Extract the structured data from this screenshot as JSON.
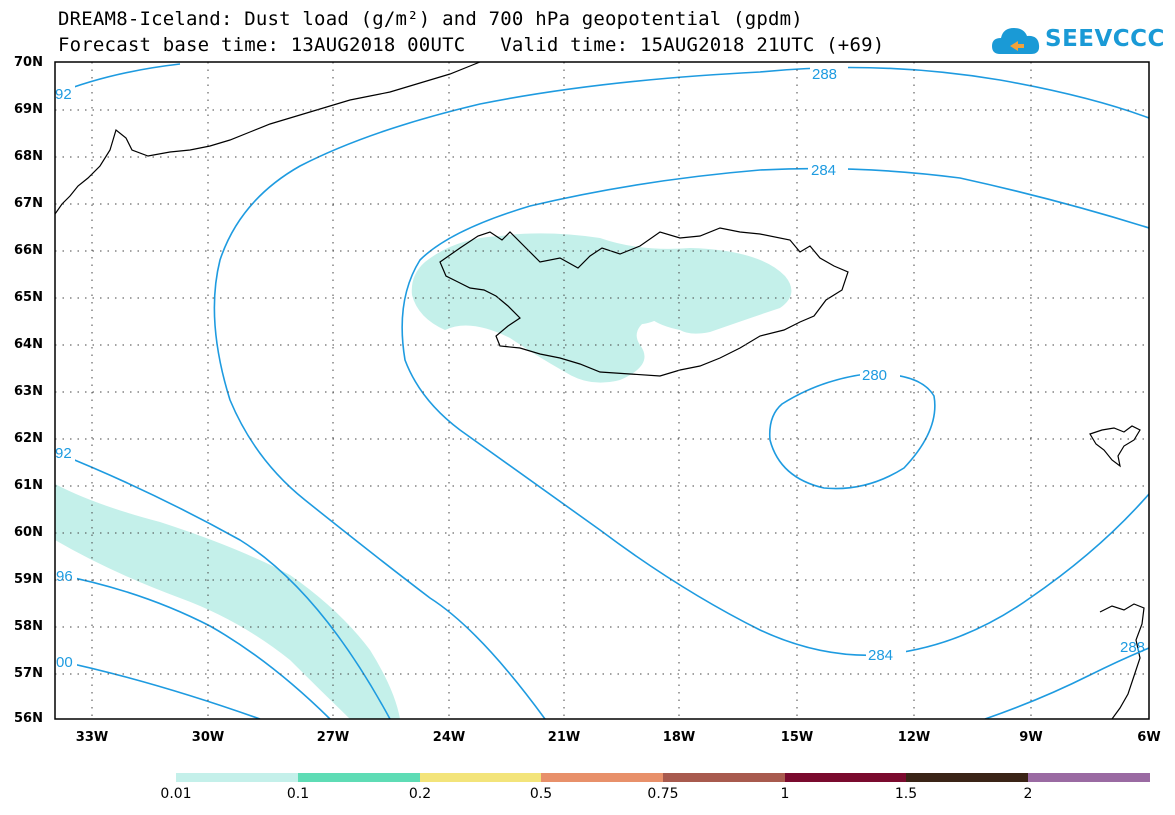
{
  "title": {
    "line1": "DREAM8-Iceland: Dust load (g/m²) and 700 hPa geopotential (gpdm)",
    "line2": "Forecast base time: 13AUG2018 00UTC   Valid time: 15AUG2018 21UTC (+69)"
  },
  "logo": {
    "text": "SEEVCCC",
    "icon": "cloud-icon",
    "color": "#1a9ad6"
  },
  "lat_labels": [
    "70N",
    "69N",
    "68N",
    "67N",
    "66N",
    "65N",
    "64N",
    "63N",
    "62N",
    "61N",
    "60N",
    "59N",
    "58N",
    "57N",
    "56N"
  ],
  "lon_labels": [
    "33W",
    "30W",
    "27W",
    "24W",
    "21W",
    "18W",
    "15W",
    "12W",
    "9W",
    "6W"
  ],
  "contour_labels": [
    "288",
    "284",
    "280",
    "284",
    "92",
    "92",
    "96",
    "00",
    "288"
  ],
  "contour_color": "#1e9be0",
  "dust_color": "#c4f0ea",
  "colorbar": {
    "colors": [
      "#c4f0ea",
      "#5edcb5",
      "#f3e47a",
      "#e8906a",
      "#a85a4e",
      "#7a0a2e",
      "#3a2416",
      "#9a6aa2"
    ],
    "labels": [
      "0.01",
      "0.1",
      "0.2",
      "0.5",
      "0.75",
      "1",
      "1.5",
      "2"
    ]
  }
}
